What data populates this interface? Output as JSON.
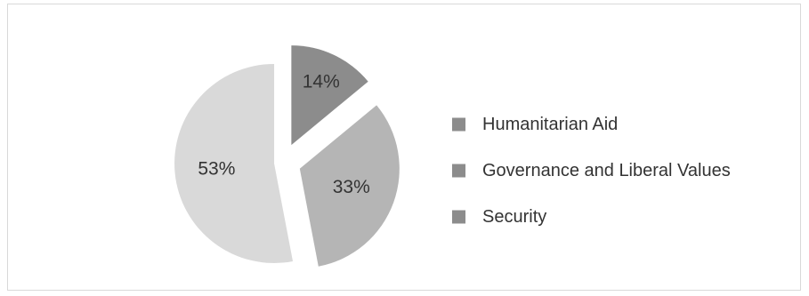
{
  "chart_data": {
    "type": "pie",
    "exploded": true,
    "slices": [
      {
        "label": "Humanitarian Aid",
        "value": 14,
        "value_label": "14%",
        "color": "#8c8c8c"
      },
      {
        "label": "Governance and Liberal Values",
        "value": 33,
        "value_label": "33%",
        "color": "#b5b5b5"
      },
      {
        "label": "Security",
        "value": 53,
        "value_label": "53%",
        "color": "#d9d9d9"
      }
    ],
    "legend": {
      "placement": "right",
      "entries": [
        "Humanitarian Aid",
        "Governance and Liberal Values",
        "Security"
      ],
      "swatch_color": "#8c8c8c"
    }
  }
}
